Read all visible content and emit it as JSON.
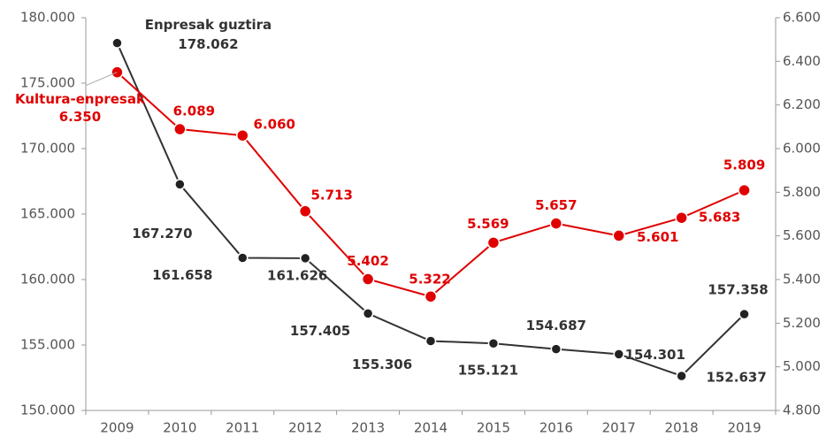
{
  "chart_data": {
    "type": "line",
    "categories": [
      "2009",
      "2010",
      "2011",
      "2012",
      "2013",
      "2014",
      "2015",
      "2016",
      "2017",
      "2018",
      "2019"
    ],
    "series": [
      {
        "name": "Enpresak guztira",
        "color": "#333333",
        "axis": "y",
        "values": [
          178062,
          167270,
          161658,
          161626,
          157405,
          155306,
          155121,
          154687,
          154301,
          152637,
          157358
        ],
        "value_labels": [
          "178.062",
          "167.270",
          "161.658",
          "161.626",
          "157.405",
          "155.306",
          "155.121",
          "154.687",
          "154.301",
          "152.637",
          "157.358"
        ]
      },
      {
        "name": "Kultura-enpresak",
        "color": "#e00000",
        "axis": "y2",
        "values": [
          6350,
          6089,
          6060,
          5713,
          5402,
          5322,
          5569,
          5657,
          5601,
          5683,
          5809
        ],
        "value_labels": [
          "6.350",
          "6.089",
          "6.060",
          "5.713",
          "5.402",
          "5.322",
          "5.569",
          "5.657",
          "5.601",
          "5.683",
          "5.809"
        ]
      }
    ],
    "ylim": [
      150000,
      180000
    ],
    "yticks": [
      {
        "value": 150000,
        "label": "150.000"
      },
      {
        "value": 155000,
        "label": "155.000"
      },
      {
        "value": 160000,
        "label": "160.000"
      },
      {
        "value": 165000,
        "label": "165.000"
      },
      {
        "value": 170000,
        "label": "170.000"
      },
      {
        "value": 175000,
        "label": "175.000"
      },
      {
        "value": 180000,
        "label": "180.000"
      }
    ],
    "y2lim": [
      4800,
      6600
    ],
    "y2ticks": [
      {
        "value": 4800,
        "label": "4.800"
      },
      {
        "value": 5000,
        "label": "5.000"
      },
      {
        "value": 5200,
        "label": "5.200"
      },
      {
        "value": 5400,
        "label": "5.400"
      },
      {
        "value": 5600,
        "label": "5.600"
      },
      {
        "value": 5800,
        "label": "5.800"
      },
      {
        "value": 6000,
        "label": "6.000"
      },
      {
        "value": 6200,
        "label": "6.200"
      },
      {
        "value": 6400,
        "label": "6.400"
      },
      {
        "value": 6600,
        "label": "6.600"
      }
    ],
    "grid": false
  }
}
